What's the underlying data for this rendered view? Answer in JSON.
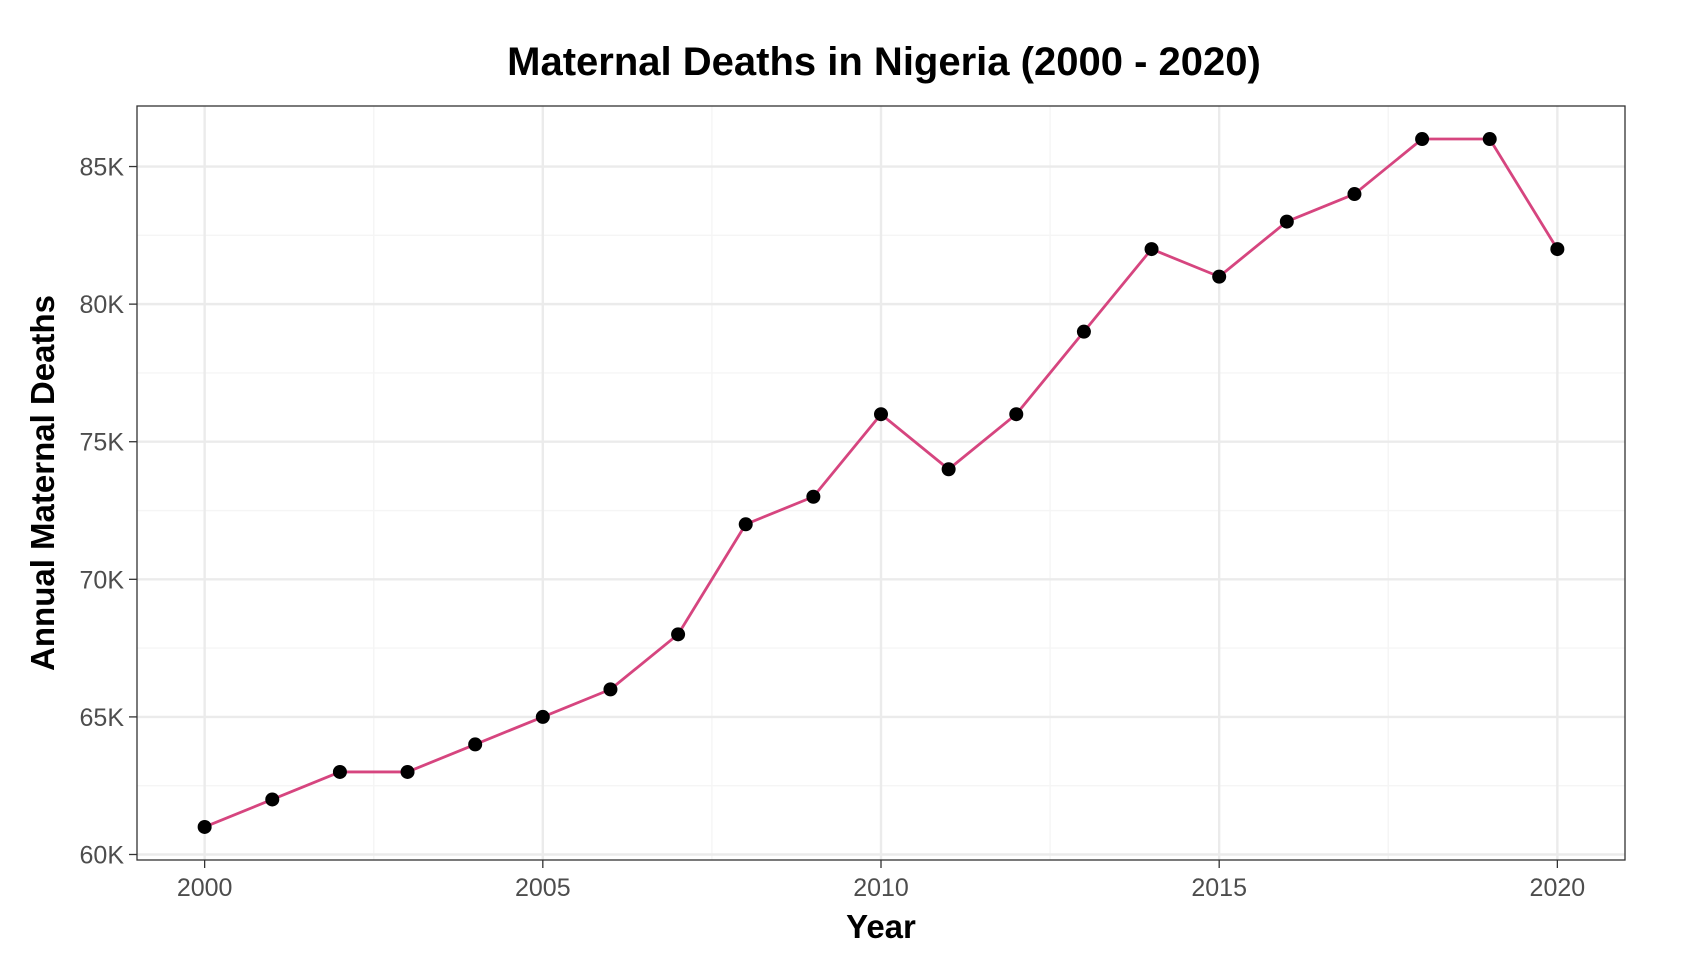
{
  "chart_data": {
    "type": "line",
    "title": "Maternal Deaths in Nigeria (2000 - 2020)",
    "xlabel": "Year",
    "ylabel": "Annual Maternal Deaths",
    "xlim": [
      1999,
      2021
    ],
    "ylim": [
      59800,
      87200
    ],
    "x_ticks": [
      2000,
      2005,
      2010,
      2015,
      2020
    ],
    "x_tick_labels": [
      "2000",
      "2005",
      "2010",
      "2015",
      "2020"
    ],
    "y_ticks": [
      60000,
      65000,
      70000,
      75000,
      80000,
      85000
    ],
    "y_tick_labels": [
      "60K",
      "65K",
      "70K",
      "75K",
      "80K",
      "85K"
    ],
    "grid": true,
    "legend": "none",
    "series": [
      {
        "x": [
          2000,
          2001,
          2002,
          2003,
          2004,
          2005,
          2006,
          2007,
          2008,
          2009,
          2010,
          2011,
          2012,
          2013,
          2014,
          2015,
          2016,
          2017,
          2018,
          2019,
          2020
        ],
        "values": [
          61000,
          62000,
          63000,
          63000,
          64000,
          65000,
          66000,
          68000,
          72000,
          73000,
          76000,
          74000,
          76000,
          79000,
          82000,
          81000,
          83000,
          84000,
          86000,
          86000,
          82000
        ]
      }
    ]
  },
  "colors": {
    "line": "#d6457f",
    "point": "#000000",
    "grid_major": "#ebebeb",
    "grid_minor": "#f5f5f5",
    "panel_border": "#333333",
    "tick_text": "#4d4d4d"
  }
}
